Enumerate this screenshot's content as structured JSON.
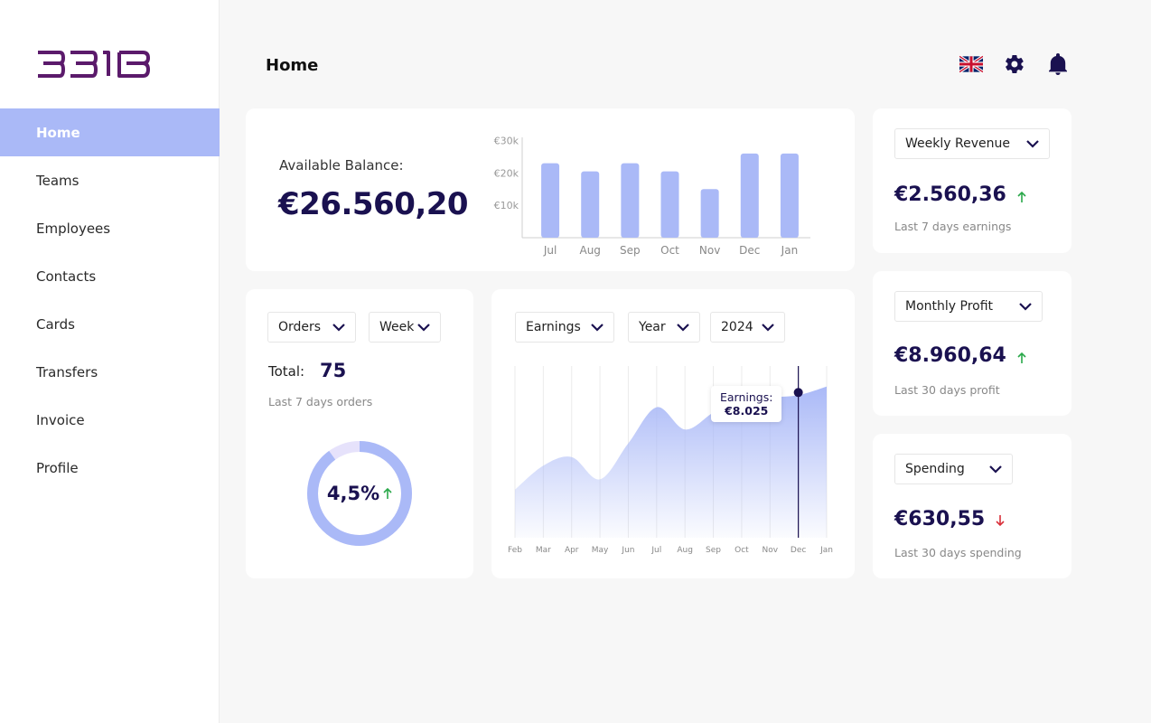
{
  "brand": {
    "logo_text": "BEIB",
    "color": "#5b1a6b"
  },
  "sidebar": {
    "items": [
      {
        "label": "Home",
        "active": true
      },
      {
        "label": "Teams"
      },
      {
        "label": "Employees"
      },
      {
        "label": "Contacts"
      },
      {
        "label": "Cards"
      },
      {
        "label": "Transfers"
      },
      {
        "label": "Invoice"
      },
      {
        "label": "Profile"
      }
    ]
  },
  "header": {
    "title": "Home",
    "icons": [
      "uk-flag-icon",
      "gear-icon",
      "bell-icon"
    ]
  },
  "balance": {
    "label": "Available Balance:",
    "value": "€26.560,20",
    "chart_data": {
      "type": "bar",
      "categories": [
        "Jul",
        "Aug",
        "Sep",
        "Oct",
        "Nov",
        "Dec",
        "Jan"
      ],
      "values": [
        23,
        20.5,
        23,
        20.5,
        15,
        26,
        26
      ],
      "ytick_labels": [
        "€30k",
        "€20k",
        "€10k"
      ],
      "yticks": [
        30,
        20,
        10
      ],
      "ylim": [
        0,
        31
      ],
      "color": "#aab9f7"
    }
  },
  "orders": {
    "dropdown1": "Orders",
    "dropdown2": "Week",
    "total_label": "Total:",
    "total_value": "75",
    "subtitle": "Last 7 days orders",
    "percent": "4,5%",
    "trend": "up",
    "ring_fraction": 0.9
  },
  "earnings": {
    "dropdown1": "Earnings",
    "dropdown2": "Year",
    "dropdown3": "2024",
    "tooltip_label": "Earnings:",
    "tooltip_value": "€8.025",
    "chart_data": {
      "type": "area",
      "categories": [
        "Feb",
        "Mar",
        "Apr",
        "May",
        "Jun",
        "Jul",
        "Aug",
        "Sep",
        "Oct",
        "Nov",
        "Dec",
        "Jan"
      ],
      "values": [
        28,
        42,
        47,
        34,
        55,
        76,
        63,
        73,
        83,
        82,
        83,
        88
      ],
      "ylim": [
        0,
        100
      ],
      "highlight_index": 10,
      "color": "#aab9f7"
    }
  },
  "stats": [
    {
      "dropdown": "Weekly Revenue",
      "value": "€2.560,36",
      "trend": "up",
      "subtitle": "Last 7 days earnings"
    },
    {
      "dropdown": "Monthly Profit",
      "value": "€8.960,64",
      "trend": "up",
      "subtitle": "Last 30 days profit"
    },
    {
      "dropdown": "Spending",
      "value": "€630,55",
      "trend": "down",
      "subtitle": "Last 30 days spending"
    }
  ],
  "colors": {
    "accent": "#aab9f7",
    "navy": "#1a1150",
    "up": "#2aa84a",
    "down": "#d9303a"
  }
}
